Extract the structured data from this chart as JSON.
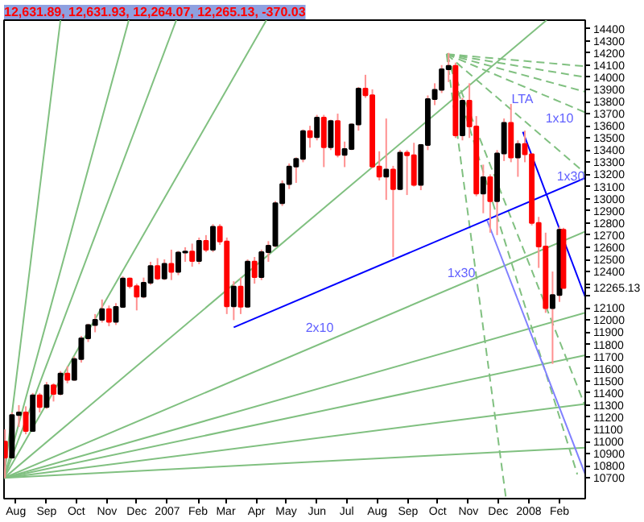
{
  "chart_data": {
    "type": "candlestick",
    "title": "12,631.89, 12,631.93, 12,264.07, 12,265.13, -370.03",
    "x": [
      "2006-07-21",
      "2006-07-28",
      "2006-08-04",
      "2006-08-11",
      "2006-08-18",
      "2006-08-25",
      "2006-09-01",
      "2006-09-08",
      "2006-09-15",
      "2006-09-22",
      "2006-09-29",
      "2006-10-06",
      "2006-10-13",
      "2006-10-20",
      "2006-10-27",
      "2006-11-03",
      "2006-11-10",
      "2006-11-17",
      "2006-11-24",
      "2006-12-01",
      "2006-12-08",
      "2006-12-15",
      "2006-12-22",
      "2006-12-29",
      "2007-01-05",
      "2007-01-12",
      "2007-01-19",
      "2007-01-26",
      "2007-02-02",
      "2007-02-09",
      "2007-02-16",
      "2007-02-23",
      "2007-03-02",
      "2007-03-09",
      "2007-03-16",
      "2007-03-23",
      "2007-03-30",
      "2007-04-06",
      "2007-04-13",
      "2007-04-20",
      "2007-04-27",
      "2007-05-04",
      "2007-05-11",
      "2007-05-18",
      "2007-05-25",
      "2007-06-01",
      "2007-06-08",
      "2007-06-15",
      "2007-06-22",
      "2007-06-29",
      "2007-07-06",
      "2007-07-13",
      "2007-07-20",
      "2007-07-27",
      "2007-08-03",
      "2007-08-10",
      "2007-08-17",
      "2007-08-24",
      "2007-08-31",
      "2007-09-07",
      "2007-09-14",
      "2007-09-21",
      "2007-09-28",
      "2007-10-05",
      "2007-10-12",
      "2007-10-19",
      "2007-10-26",
      "2007-11-02",
      "2007-11-09",
      "2007-11-16",
      "2007-11-23",
      "2007-11-30",
      "2007-12-07",
      "2007-12-14",
      "2007-12-21",
      "2007-12-28",
      "2008-01-04",
      "2008-01-11",
      "2008-01-18",
      "2008-01-25",
      "2008-02-01",
      "2008-02-05"
    ],
    "ohlc": [
      [
        11000,
        11100,
        10700,
        10868
      ],
      [
        10868,
        11240,
        10860,
        11219
      ],
      [
        11219,
        11300,
        11120,
        11240
      ],
      [
        11240,
        11290,
        11060,
        11088
      ],
      [
        11088,
        11400,
        11080,
        11381
      ],
      [
        11381,
        11400,
        11240,
        11284
      ],
      [
        11284,
        11490,
        11270,
        11464
      ],
      [
        11464,
        11480,
        11330,
        11392
      ],
      [
        11392,
        11580,
        11380,
        11560
      ],
      [
        11560,
        11620,
        11480,
        11508
      ],
      [
        11508,
        11700,
        11500,
        11679
      ],
      [
        11679,
        11870,
        11650,
        11850
      ],
      [
        11850,
        11970,
        11820,
        11960
      ],
      [
        11960,
        12050,
        11900,
        12002
      ],
      [
        12002,
        12170,
        11980,
        12090
      ],
      [
        12090,
        12120,
        11950,
        11986
      ],
      [
        11986,
        12140,
        11960,
        12108
      ],
      [
        12108,
        12360,
        12100,
        12342
      ],
      [
        12342,
        12350,
        12260,
        12280
      ],
      [
        12280,
        12300,
        12080,
        12194
      ],
      [
        12194,
        12350,
        12180,
        12307
      ],
      [
        12307,
        12480,
        12290,
        12445
      ],
      [
        12445,
        12510,
        12330,
        12343
      ],
      [
        12343,
        12500,
        12330,
        12463
      ],
      [
        12463,
        12580,
        12330,
        12398
      ],
      [
        12398,
        12570,
        12370,
        12556
      ],
      [
        12556,
        12600,
        12480,
        12565
      ],
      [
        12565,
        12630,
        12440,
        12487
      ],
      [
        12487,
        12680,
        12460,
        12653
      ],
      [
        12653,
        12700,
        12560,
        12580
      ],
      [
        12580,
        12790,
        12560,
        12768
      ],
      [
        12768,
        12790,
        12620,
        12647
      ],
      [
        12647,
        12680,
        12050,
        12114
      ],
      [
        12114,
        12320,
        12000,
        12276
      ],
      [
        12276,
        12350,
        12050,
        12110
      ],
      [
        12110,
        12500,
        12100,
        12481
      ],
      [
        12481,
        12520,
        12300,
        12354
      ],
      [
        12354,
        12580,
        12330,
        12560
      ],
      [
        12560,
        12650,
        12480,
        12612
      ],
      [
        12612,
        12980,
        12600,
        12962
      ],
      [
        12962,
        13150,
        12940,
        13120
      ],
      [
        13120,
        13290,
        13080,
        13264
      ],
      [
        13264,
        13340,
        13130,
        13327
      ],
      [
        13327,
        13570,
        13300,
        13556
      ],
      [
        13556,
        13600,
        13420,
        13507
      ],
      [
        13507,
        13690,
        13480,
        13668
      ],
      [
        13668,
        13690,
        13260,
        13424
      ],
      [
        13424,
        13650,
        13400,
        13639
      ],
      [
        13639,
        13700,
        13340,
        13361
      ],
      [
        13361,
        13470,
        13260,
        13408
      ],
      [
        13408,
        13620,
        13400,
        13611
      ],
      [
        13611,
        13920,
        13560,
        13907
      ],
      [
        13907,
        14020,
        13830,
        13851
      ],
      [
        13851,
        13900,
        13250,
        13265
      ],
      [
        13265,
        13390,
        13150,
        13182
      ],
      [
        13182,
        13660,
        12990,
        13239
      ],
      [
        13239,
        13270,
        12520,
        13079
      ],
      [
        13079,
        13400,
        13070,
        13379
      ],
      [
        13379,
        13400,
        13030,
        13358
      ],
      [
        13358,
        13460,
        13100,
        13113
      ],
      [
        13113,
        13450,
        13070,
        13442
      ],
      [
        13442,
        13850,
        13400,
        13820
      ],
      [
        13820,
        13950,
        13770,
        13896
      ],
      [
        13896,
        14100,
        13870,
        14066
      ],
      [
        14066,
        14200,
        13960,
        14093
      ],
      [
        14093,
        14120,
        13500,
        13522
      ],
      [
        13522,
        13830,
        13480,
        13807
      ],
      [
        13807,
        13950,
        13500,
        13595
      ],
      [
        13595,
        13680,
        13020,
        13042
      ],
      [
        13042,
        13280,
        12880,
        13176
      ],
      [
        13176,
        13200,
        12720,
        12980
      ],
      [
        12980,
        13400,
        12700,
        13372
      ],
      [
        13372,
        13660,
        13310,
        13625
      ],
      [
        13625,
        13780,
        13300,
        13339
      ],
      [
        13339,
        13480,
        13180,
        13450
      ],
      [
        13450,
        13560,
        13300,
        13366
      ],
      [
        13366,
        13370,
        12780,
        12800
      ],
      [
        12800,
        12850,
        12430,
        12606
      ],
      [
        12606,
        12720,
        12060,
        12099
      ],
      [
        12099,
        12400,
        11640,
        12207
      ],
      [
        12207,
        12770,
        12150,
        12743
      ],
      [
        12743,
        12760,
        12264,
        12265
      ]
    ],
    "series": [
      {
        "type": "line",
        "x": [
          "2006-07-20",
          "2006-09-15"
        ],
        "values": [
          10700,
          14470
        ],
        "color": "#80c080",
        "line_style": "solid"
      },
      {
        "type": "line",
        "x": [
          "2006-07-20",
          "2006-11-23"
        ],
        "values": [
          10700,
          14470
        ],
        "color": "#80c080",
        "line_style": "solid"
      },
      {
        "type": "line",
        "x": [
          "2006-07-20",
          "2007-01-10"
        ],
        "values": [
          10700,
          14470
        ],
        "color": "#80c080",
        "line_style": "solid"
      },
      {
        "type": "line",
        "x": [
          "2006-07-20",
          "2007-04-11"
        ],
        "values": [
          10700,
          14470
        ],
        "color": "#80c080",
        "line_style": "solid"
      },
      {
        "type": "line",
        "x": [
          "2006-07-20",
          "2008-01-19"
        ],
        "values": [
          10700,
          14470
        ],
        "color": "#80c080",
        "line_style": "solid"
      },
      {
        "type": "line",
        "x": [
          "2006-07-20",
          "2008-02-27"
        ],
        "values": [
          10700,
          12730
        ],
        "color": "#80c080",
        "line_style": "solid"
      },
      {
        "type": "line",
        "x": [
          "2006-07-20",
          "2008-02-27"
        ],
        "values": [
          10700,
          12060
        ],
        "color": "#80c080",
        "line_style": "solid"
      },
      {
        "type": "line",
        "x": [
          "2006-07-20",
          "2008-02-27"
        ],
        "values": [
          10700,
          11710
        ],
        "color": "#80c080",
        "line_style": "solid"
      },
      {
        "type": "line",
        "x": [
          "2006-07-20",
          "2008-02-27"
        ],
        "values": [
          10700,
          11310
        ],
        "color": "#80c080",
        "line_style": "solid"
      },
      {
        "type": "line",
        "x": [
          "2006-07-20",
          "2008-02-27"
        ],
        "values": [
          10700,
          10950
        ],
        "color": "#80c080",
        "line_style": "solid"
      },
      {
        "type": "line",
        "x": [
          "2007-10-10",
          "2008-02-27"
        ],
        "values": [
          14190,
          14090
        ],
        "color": "#80c080",
        "line_style": "dashed"
      },
      {
        "type": "line",
        "x": [
          "2007-10-10",
          "2008-02-27"
        ],
        "values": [
          14190,
          14000
        ],
        "color": "#80c080",
        "line_style": "dashed"
      },
      {
        "type": "line",
        "x": [
          "2007-10-10",
          "2008-02-27"
        ],
        "values": [
          14190,
          13880
        ],
        "color": "#80c080",
        "line_style": "dashed"
      },
      {
        "type": "line",
        "x": [
          "2007-10-10",
          "2008-02-27"
        ],
        "values": [
          14190,
          13710
        ],
        "color": "#80c080",
        "line_style": "dashed"
      },
      {
        "type": "line",
        "x": [
          "2007-10-10",
          "2008-02-27"
        ],
        "values": [
          14190,
          13210
        ],
        "color": "#80c080",
        "line_style": "dashed"
      },
      {
        "type": "line",
        "x": [
          "2007-10-10",
          "2008-02-27"
        ],
        "values": [
          14190,
          11290
        ],
        "color": "#80c080",
        "line_style": "dashed"
      },
      {
        "type": "line",
        "x": [
          "2007-10-10",
          "2008-02-19"
        ],
        "values": [
          14190,
          10730
        ],
        "color": "#80c080",
        "line_style": "dashed"
      },
      {
        "type": "line",
        "x": [
          "2007-10-10",
          "2007-12-09"
        ],
        "values": [
          14190,
          10530
        ],
        "color": "#80c080",
        "line_style": "dashed"
      },
      {
        "type": "line",
        "x": [
          "2007-03-09",
          "2008-02-27"
        ],
        "values": [
          11940,
          13170
        ],
        "color": "#0000ff",
        "line_style": "solid"
      },
      {
        "type": "line",
        "x": [
          "2007-12-26",
          "2008-02-27"
        ],
        "values": [
          13550,
          12190
        ],
        "color": "#0000ff",
        "line_style": "solid"
      },
      {
        "type": "line",
        "x": [
          "2007-11-20",
          "2008-02-27"
        ],
        "values": [
          12820,
          10730
        ],
        "color": "#8080ff",
        "line_style": "solid"
      }
    ],
    "annotations": [
      "LTA",
      "1x10",
      "1x30",
      "1x30",
      "2x10"
    ],
    "xlim": [
      "2006-07-20",
      "2008-02-27"
    ],
    "xticks": [
      {
        "value": "2006-08-01",
        "label": "Aug"
      },
      {
        "value": "2006-09-01",
        "label": "Sep"
      },
      {
        "value": "2006-10-01",
        "label": "Oct"
      },
      {
        "value": "2006-11-01",
        "label": "Nov"
      },
      {
        "value": "2006-12-01",
        "label": "Dec"
      },
      {
        "value": "2007-01-01",
        "label": "2007"
      },
      {
        "value": "2007-02-01",
        "label": "Feb"
      },
      {
        "value": "2007-03-01",
        "label": "Mar"
      },
      {
        "value": "2007-04-01",
        "label": "Apr"
      },
      {
        "value": "2007-05-01",
        "label": "May"
      },
      {
        "value": "2007-06-01",
        "label": "Jun"
      },
      {
        "value": "2007-07-01",
        "label": "Jul"
      },
      {
        "value": "2007-08-01",
        "label": "Aug"
      },
      {
        "value": "2007-09-01",
        "label": "Sep"
      },
      {
        "value": "2007-10-01",
        "label": "Oct"
      },
      {
        "value": "2007-11-01",
        "label": "Nov"
      },
      {
        "value": "2007-12-01",
        "label": "Dec"
      },
      {
        "value": "2008-01-01",
        "label": "2008"
      },
      {
        "value": "2008-02-01",
        "label": "Feb"
      }
    ],
    "ylim": [
      10530,
      14470
    ],
    "yticks": [
      10700,
      10800,
      10900,
      11000,
      11100,
      11200,
      11300,
      11400,
      11500,
      11600,
      11700,
      11800,
      11900,
      12000,
      12100,
      {
        "value": 12200,
        "label": null
      },
      {
        "value": 12265.13,
        "label": "12265.13"
      },
      {
        "value": 12300,
        "label": null
      },
      12400,
      12500,
      12600,
      12700,
      12800,
      12900,
      13000,
      13100,
      13200,
      13300,
      13400,
      13500,
      13600,
      13700,
      13800,
      13900,
      14000,
      14100,
      14200,
      14300,
      14400
    ]
  }
}
